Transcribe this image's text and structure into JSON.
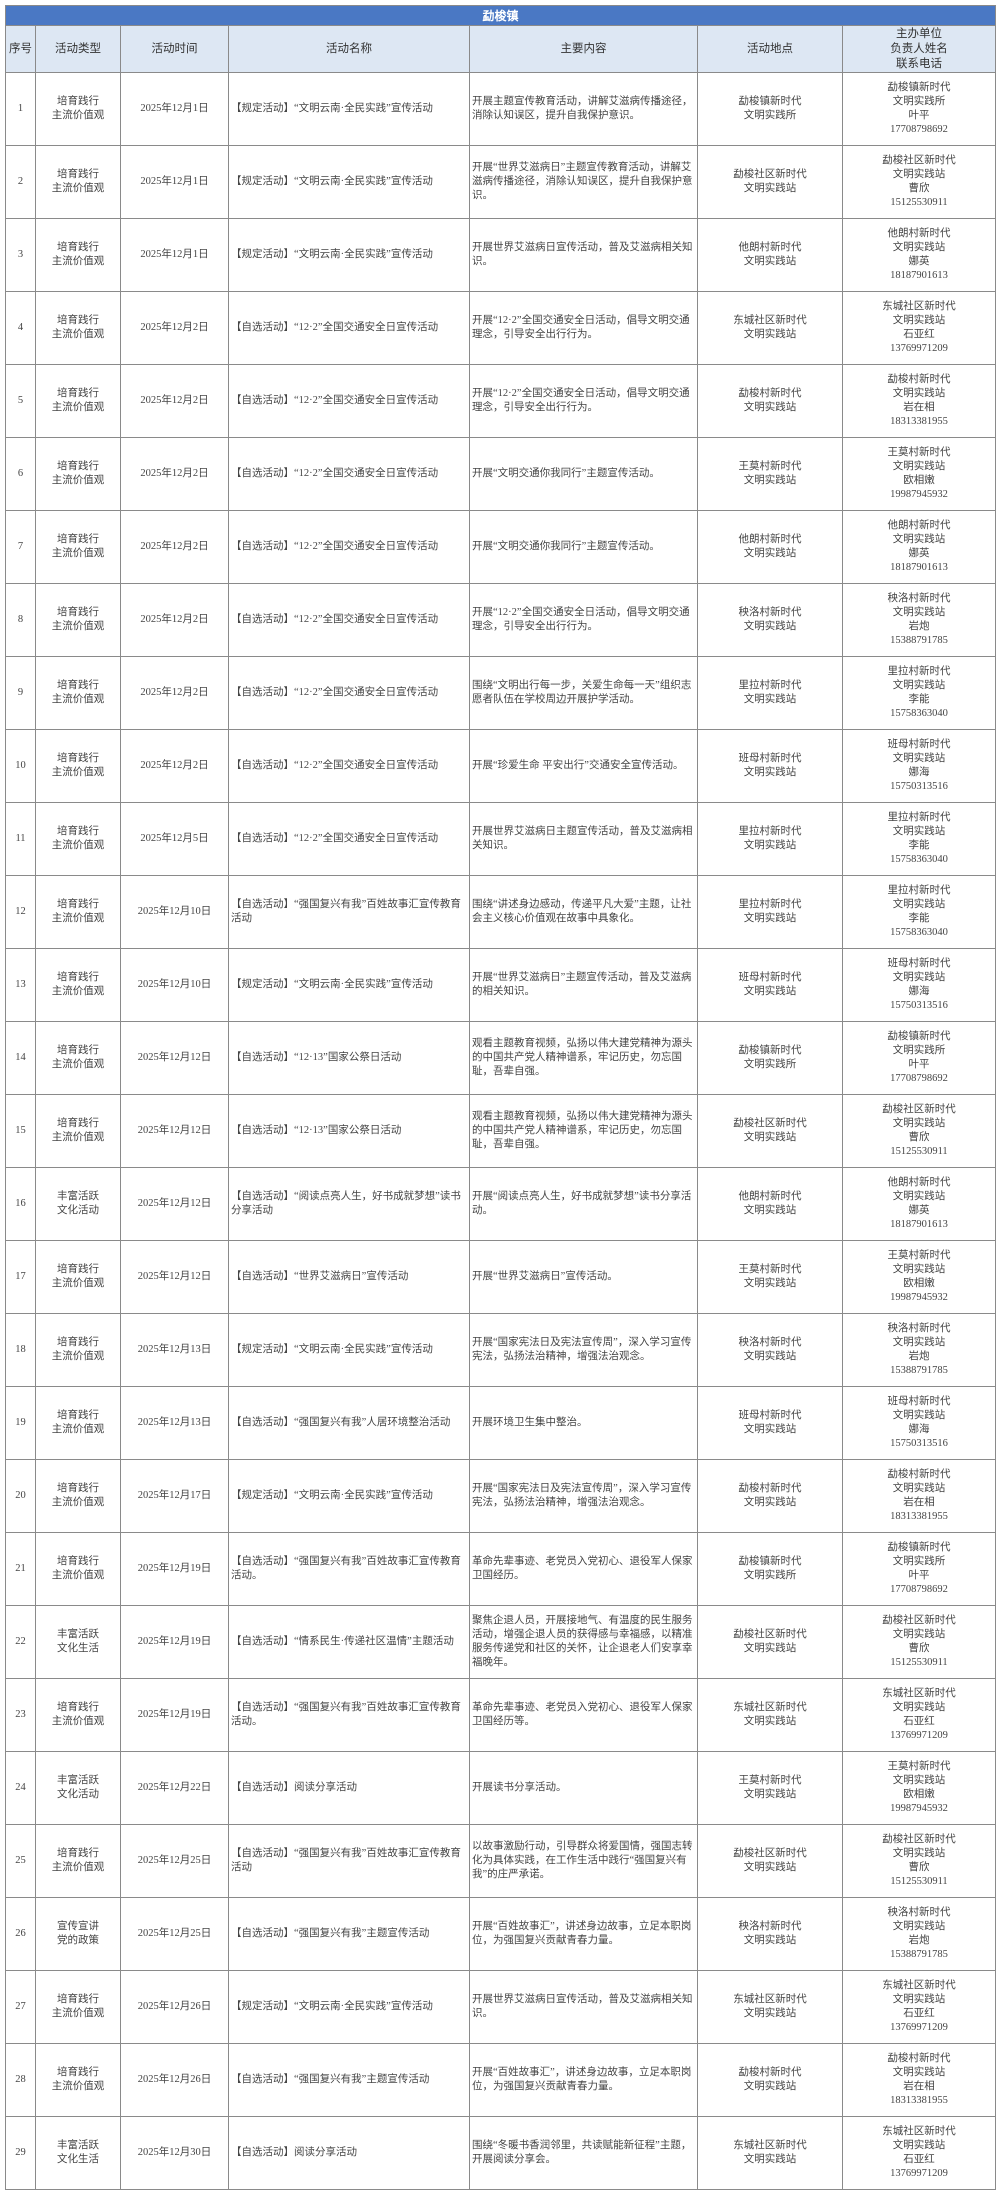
{
  "title": "勐梭镇",
  "headers": [
    "序号",
    "活动类型",
    "活动时间",
    "活动名称",
    "主要内容",
    "活动地点",
    "主办单位\n负责人姓名\n联系电话"
  ],
  "colors": {
    "title_bar": "#4a78c4",
    "header_bg": "#dde7f3"
  },
  "rows": [
    {
      "no": "1",
      "type": "培育践行\n主流价值观",
      "date": "2025年12月1日",
      "name": "【规定活动】“文明云南·全民实践”宣传活动",
      "content": "开展主题宣传教育活动，讲解艾滋病传播途径，消除认知误区，提升自我保护意识。",
      "place": "勐梭镇新时代\n文明实践所",
      "unit": "勐梭镇新时代\n文明实践所",
      "person": "叶平",
      "phone": "17708798692"
    },
    {
      "no": "2",
      "type": "培育践行\n主流价值观",
      "date": "2025年12月1日",
      "name": "【规定活动】“文明云南·全民实践”宣传活动",
      "content": "开展“世界艾滋病日”主题宣传教育活动，讲解艾滋病传播途径，消除认知误区，提升自我保护意识。",
      "place": "勐梭社区新时代\n文明实践站",
      "unit": "勐梭社区新时代\n文明实践站",
      "person": "曹欣",
      "phone": "15125530911"
    },
    {
      "no": "3",
      "type": "培育践行\n主流价值观",
      "date": "2025年12月1日",
      "name": "【规定活动】“文明云南·全民实践”宣传活动",
      "content": "开展世界艾滋病日宣传活动，普及艾滋病相关知识。",
      "place": "他朗村新时代\n文明实践站",
      "unit": "他朗村新时代\n文明实践站",
      "person": "娜英",
      "phone": "18187901613"
    },
    {
      "no": "4",
      "type": "培育践行\n主流价值观",
      "date": "2025年12月2日",
      "name": "【自选活动】“12·2”全国交通安全日宣传活动",
      "content": "开展“12·2”全国交通安全日活动，倡导文明交通理念，引导安全出行行为。",
      "place": "东城社区新时代\n文明实践站",
      "unit": "东城社区新时代\n文明实践站",
      "person": "石亚红",
      "phone": "13769971209"
    },
    {
      "no": "5",
      "type": "培育践行\n主流价值观",
      "date": "2025年12月2日",
      "name": "【自选活动】“12·2”全国交通安全日宣传活动",
      "content": "开展“12·2”全国交通安全日活动，倡导文明交通理念，引导安全出行行为。",
      "place": "勐梭村新时代\n文明实践站",
      "unit": "勐梭村新时代\n文明实践站",
      "person": "岩在相",
      "phone": "18313381955"
    },
    {
      "no": "6",
      "type": "培育践行\n主流价值观",
      "date": "2025年12月2日",
      "name": "【自选活动】“12·2”全国交通安全日宣传活动",
      "content": "开展“文明交通你我同行”主题宣传活动。",
      "place": "王莫村新时代\n文明实践站",
      "unit": "王莫村新时代\n文明实践站",
      "person": "欧相嫩",
      "phone": "19987945932"
    },
    {
      "no": "7",
      "type": "培育践行\n主流价值观",
      "date": "2025年12月2日",
      "name": "【自选活动】“12·2”全国交通安全日宣传活动",
      "content": "开展“文明交通你我同行”主题宣传活动。",
      "place": "他朗村新时代\n文明实践站",
      "unit": "他朗村新时代\n文明实践站",
      "person": "娜英",
      "phone": "18187901613"
    },
    {
      "no": "8",
      "type": "培育践行\n主流价值观",
      "date": "2025年12月2日",
      "name": "【自选活动】“12·2”全国交通安全日宣传活动",
      "content": "开展“12·2”全国交通安全日活动，倡导文明交通理念，引导安全出行行为。",
      "place": "秧洛村新时代\n文明实践站",
      "unit": "秧洛村新时代\n文明实践站",
      "person": "岩炮",
      "phone": "15388791785"
    },
    {
      "no": "9",
      "type": "培育践行\n主流价值观",
      "date": "2025年12月2日",
      "name": "【自选活动】“12·2”全国交通安全日宣传活动",
      "content": "围绕“文明出行每一步，关爱生命每一天”组织志愿者队伍在学校周边开展护学活动。",
      "place": "里拉村新时代\n文明实践站",
      "unit": "里拉村新时代\n文明实践站",
      "person": "李能",
      "phone": "15758363040"
    },
    {
      "no": "10",
      "type": "培育践行\n主流价值观",
      "date": "2025年12月2日",
      "name": "【自选活动】“12·2”全国交通安全日宣传活动",
      "content": "开展“珍爱生命 平安出行”交通安全宣传活动。",
      "place": "班母村新时代\n文明实践站",
      "unit": "班母村新时代\n文明实践站",
      "person": "娜海",
      "phone": "15750313516"
    },
    {
      "no": "11",
      "type": "培育践行\n主流价值观",
      "date": "2025年12月5日",
      "name": "【自选活动】“12·2”全国交通安全日宣传活动",
      "content": "开展世界艾滋病日主题宣传活动，普及艾滋病相关知识。",
      "place": "里拉村新时代\n文明实践站",
      "unit": "里拉村新时代\n文明实践站",
      "person": "李能",
      "phone": "15758363040"
    },
    {
      "no": "12",
      "type": "培育践行\n主流价值观",
      "date": "2025年12月10日",
      "name": "【自选活动】“强国复兴有我”百姓故事汇宣传教育活动",
      "content": "围绕“讲述身边感动，传递平凡大爱”主题，让社会主义核心价值观在故事中具象化。",
      "place": "里拉村新时代\n文明实践站",
      "unit": "里拉村新时代\n文明实践站",
      "person": "李能",
      "phone": "15758363040"
    },
    {
      "no": "13",
      "type": "培育践行\n主流价值观",
      "date": "2025年12月10日",
      "name": "【规定活动】“文明云南·全民实践”宣传活动",
      "content": "开展“世界艾滋病日”主题宣传活动，普及艾滋病的相关知识。",
      "place": "班母村新时代\n文明实践站",
      "unit": "班母村新时代\n文明实践站",
      "person": "娜海",
      "phone": "15750313516"
    },
    {
      "no": "14",
      "type": "培育践行\n主流价值观",
      "date": "2025年12月12日",
      "name": "【自选活动】“12·13”国家公祭日活动",
      "content": "观看主题教育视频，弘扬以伟大建党精神为源头的中国共产党人精神谱系，牢记历史，勿忘国耻，吾辈自强。",
      "place": "勐梭镇新时代\n文明实践所",
      "unit": "勐梭镇新时代\n文明实践所",
      "person": "叶平",
      "phone": "17708798692"
    },
    {
      "no": "15",
      "type": "培育践行\n主流价值观",
      "date": "2025年12月12日",
      "name": "【自选活动】“12·13”国家公祭日活动",
      "content": "观看主题教育视频，弘扬以伟大建党精神为源头的中国共产党人精神谱系，牢记历史，勿忘国耻，吾辈自强。",
      "place": "勐梭社区新时代\n文明实践站",
      "unit": "勐梭社区新时代\n文明实践站",
      "person": "曹欣",
      "phone": "15125530911"
    },
    {
      "no": "16",
      "type": "丰富活跃\n文化活动",
      "date": "2025年12月12日",
      "name": "【自选活动】“阅读点亮人生，好书成就梦想”读书分享活动",
      "content": "开展“阅读点亮人生，好书成就梦想”读书分享活动。",
      "place": "他朗村新时代\n文明实践站",
      "unit": "他朗村新时代\n文明实践站",
      "person": "娜英",
      "phone": "18187901613"
    },
    {
      "no": "17",
      "type": "培育践行\n主流价值观",
      "date": "2025年12月12日",
      "name": "【自选活动】“世界艾滋病日”宣传活动",
      "content": "开展“世界艾滋病日”宣传活动。",
      "place": "王莫村新时代\n文明实践站",
      "unit": "王莫村新时代\n文明实践站",
      "person": "欧相嫩",
      "phone": "19987945932"
    },
    {
      "no": "18",
      "type": "培育践行\n主流价值观",
      "date": "2025年12月13日",
      "name": "【规定活动】“文明云南·全民实践”宣传活动",
      "content": "开展“国家宪法日及宪法宣传周”，深入学习宣传宪法，弘扬法治精神，增强法治观念。",
      "place": "秧洛村新时代\n文明实践站",
      "unit": "秧洛村新时代\n文明实践站",
      "person": "岩炮",
      "phone": "15388791785"
    },
    {
      "no": "19",
      "type": "培育践行\n主流价值观",
      "date": "2025年12月13日",
      "name": "【自选活动】“强国复兴有我”人居环境整治活动",
      "content": "开展环境卫生集中整治。",
      "place": "班母村新时代\n文明实践站",
      "unit": "班母村新时代\n文明实践站",
      "person": "娜海",
      "phone": "15750313516"
    },
    {
      "no": "20",
      "type": "培育践行\n主流价值观",
      "date": "2025年12月17日",
      "name": "【规定活动】“文明云南·全民实践”宣传活动",
      "content": "开展“国家宪法日及宪法宣传周”，深入学习宣传宪法，弘扬法治精神，增强法治观念。",
      "place": "勐梭村新时代\n文明实践站",
      "unit": "勐梭村新时代\n文明实践站",
      "person": "岩在相",
      "phone": "18313381955"
    },
    {
      "no": "21",
      "type": "培育践行\n主流价值观",
      "date": "2025年12月19日",
      "name": "【自选活动】“强国复兴有我”百姓故事汇宣传教育活动。",
      "content": "革命先辈事迹、老党员入党初心、退役军人保家卫国经历。",
      "place": "勐梭镇新时代\n文明实践所",
      "unit": "勐梭镇新时代\n文明实践所",
      "person": "叶平",
      "phone": "17708798692"
    },
    {
      "no": "22",
      "type": "丰富活跃\n文化生活",
      "date": "2025年12月19日",
      "name": "【自选活动】“情系民生·传递社区温情”主题活动",
      "content": "聚焦企退人员，开展接地气、有温度的民生服务活动，增强企退人员的获得感与幸福感，以精准服务传递党和社区的关怀，让企退老人们安享幸福晚年。",
      "place": "勐梭社区新时代\n文明实践站",
      "unit": "勐梭社区新时代\n文明实践站",
      "person": "曹欣",
      "phone": "15125530911"
    },
    {
      "no": "23",
      "type": "培育践行\n主流价值观",
      "date": "2025年12月19日",
      "name": "【自选活动】“强国复兴有我”百姓故事汇宣传教育活动。",
      "content": "革命先辈事迹、老党员入党初心、退役军人保家卫国经历等。",
      "place": "东城社区新时代\n文明实践站",
      "unit": "东城社区新时代\n文明实践站",
      "person": "石亚红",
      "phone": "13769971209"
    },
    {
      "no": "24",
      "type": "丰富活跃\n文化活动",
      "date": "2025年12月22日",
      "name": "【自选活动】阅读分享活动",
      "content": "开展读书分享活动。",
      "place": "王莫村新时代\n文明实践站",
      "unit": "王莫村新时代\n文明实践站",
      "person": "欧相嫩",
      "phone": "19987945932"
    },
    {
      "no": "25",
      "type": "培育践行\n主流价值观",
      "date": "2025年12月25日",
      "name": "【自选活动】“强国复兴有我”百姓故事汇宣传教育活动",
      "content": "以故事激励行动，引导群众将爱国情，强国志转化为具体实践，在工作生活中践行“强国复兴有我”的庄严承诺。",
      "place": "勐梭社区新时代\n文明实践站",
      "unit": "勐梭社区新时代\n文明实践站",
      "person": "曹欣",
      "phone": "15125530911"
    },
    {
      "no": "26",
      "type": "宣传宣讲\n党的政策",
      "date": "2025年12月25日",
      "name": "【自选活动】“强国复兴有我”主题宣传活动",
      "content": "开展“百姓故事汇”，讲述身边故事，立足本职岗位，为强国复兴贡献青春力量。",
      "place": "秧洛村新时代\n文明实践站",
      "unit": "秧洛村新时代\n文明实践站",
      "person": "岩炮",
      "phone": "15388791785"
    },
    {
      "no": "27",
      "type": "培育践行\n主流价值观",
      "date": "2025年12月26日",
      "name": "【规定活动】“文明云南·全民实践”宣传活动",
      "content": "开展世界艾滋病日宣传活动，普及艾滋病相关知识。",
      "place": "东城社区新时代\n文明实践站",
      "unit": "东城社区新时代\n文明实践站",
      "person": "石亚红",
      "phone": "13769971209"
    },
    {
      "no": "28",
      "type": "培育践行\n主流价值观",
      "date": "2025年12月26日",
      "name": "【自选活动】“强国复兴有我”主题宣传活动",
      "content": "开展“百姓故事汇”，讲述身边故事，立足本职岗位，为强国复兴贡献青春力量。",
      "place": "勐梭村新时代\n文明实践站",
      "unit": "勐梭村新时代\n文明实践站",
      "person": "岩在相",
      "phone": "18313381955"
    },
    {
      "no": "29",
      "type": "丰富活跃\n文化生活",
      "date": "2025年12月30日",
      "name": "【自选活动】阅读分享活动",
      "content": "围绕“冬暖书香润邻里，共读赋能新征程”主题，开展阅读分享会。",
      "place": "东城社区新时代\n文明实践站",
      "unit": "东城社区新时代\n文明实践站",
      "person": "石亚红",
      "phone": "13769971209"
    }
  ]
}
